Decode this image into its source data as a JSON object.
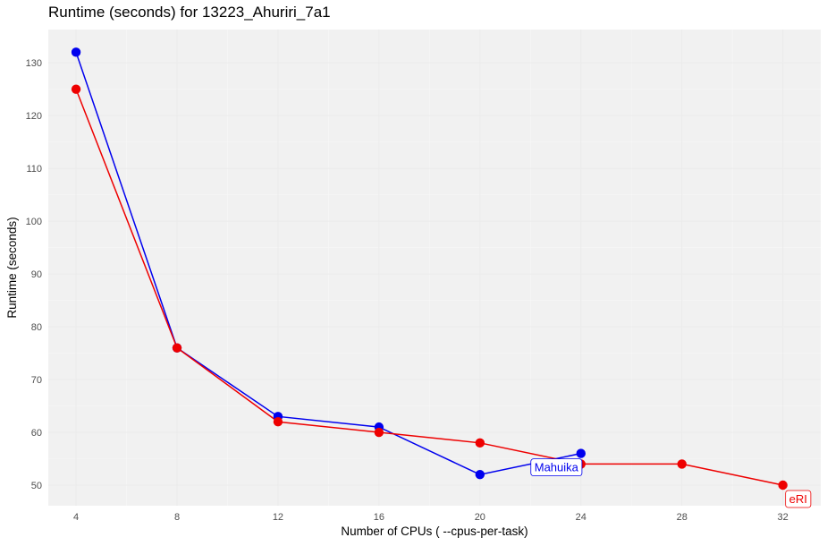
{
  "chart_data": {
    "type": "line",
    "title": "Runtime (seconds) for 13223_Ahuriri_7a1",
    "xlabel": "Number of CPUs  ( --cpus-per-task)",
    "ylabel": "Runtime (seconds)",
    "x_ticks": [
      4,
      8,
      12,
      16,
      20,
      24,
      28,
      32
    ],
    "y_ticks": [
      50,
      60,
      70,
      80,
      90,
      100,
      110,
      120,
      130
    ],
    "xlim": [
      2.9,
      33.5
    ],
    "ylim": [
      46.1,
      136.3
    ],
    "grid": true,
    "legend": "none (series labelled directly at line ends)",
    "series": [
      {
        "name": "Mahuika",
        "color": "#0000ee",
        "x": [
          4,
          8,
          12,
          16,
          20,
          24
        ],
        "y": [
          132,
          76,
          63,
          61,
          52,
          56
        ],
        "label_at_x": 24
      },
      {
        "name": "eRI",
        "color": "#ee0000",
        "x": [
          4,
          8,
          12,
          16,
          20,
          24,
          28,
          32
        ],
        "y": [
          125,
          76,
          62,
          60,
          58,
          54,
          54,
          50
        ],
        "label_at_x": 32
      }
    ]
  }
}
